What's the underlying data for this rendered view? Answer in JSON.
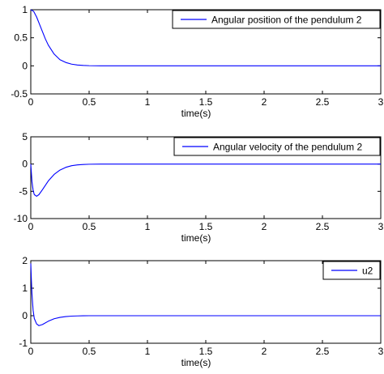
{
  "style": {
    "line_color": "#0000ff",
    "axis_color": "#000000",
    "background": "#ffffff"
  },
  "chart_data": [
    {
      "type": "line",
      "title": "",
      "xlabel": "time(s)",
      "ylabel": "",
      "xlim": [
        0,
        3
      ],
      "ylim": [
        -0.5,
        1
      ],
      "xticks": [
        0,
        0.5,
        1,
        1.5,
        2,
        2.5,
        3
      ],
      "xtick_labels": [
        "0",
        "0.5",
        "1",
        "1.5",
        "2",
        "2.5",
        "3"
      ],
      "yticks": [
        -0.5,
        0,
        0.5,
        1
      ],
      "ytick_labels": [
        "-0.5",
        "0",
        "0.5",
        "1"
      ],
      "grid": false,
      "legend_position": "top-right",
      "series": [
        {
          "name": "Angular position of the pendulum 2",
          "x": [
            0,
            0.025,
            0.05,
            0.075,
            0.1,
            0.125,
            0.15,
            0.2,
            0.25,
            0.3,
            0.35,
            0.4,
            0.45,
            0.5,
            0.6,
            1,
            1.5,
            2,
            2.5,
            3
          ],
          "y": [
            1,
            0.97,
            0.87,
            0.74,
            0.61,
            0.48,
            0.37,
            0.21,
            0.11,
            0.06,
            0.03,
            0.015,
            0.007,
            0.003,
            0,
            0,
            0,
            0,
            0,
            0
          ]
        }
      ]
    },
    {
      "type": "line",
      "title": "",
      "xlabel": "time(s)",
      "ylabel": "",
      "xlim": [
        0,
        3
      ],
      "ylim": [
        -10,
        5
      ],
      "xticks": [
        0,
        0.5,
        1,
        1.5,
        2,
        2.5,
        3
      ],
      "xtick_labels": [
        "0",
        "0.5",
        "1",
        "1.5",
        "2",
        "2.5",
        "3"
      ],
      "yticks": [
        -10,
        -5,
        0,
        5
      ],
      "ytick_labels": [
        "-10",
        "-5",
        "0",
        "5"
      ],
      "grid": false,
      "legend_position": "top-right",
      "series": [
        {
          "name": "Angular velocity of the pendulum 2",
          "x": [
            0,
            0.01,
            0.02,
            0.03,
            0.05,
            0.07,
            0.1,
            0.15,
            0.2,
            0.25,
            0.3,
            0.35,
            0.4,
            0.45,
            0.5,
            0.6,
            1,
            1.5,
            2,
            2.5,
            3
          ],
          "y": [
            0,
            -3.2,
            -4.8,
            -5.6,
            -5.9,
            -5.6,
            -4.7,
            -3.1,
            -1.9,
            -1.1,
            -0.6,
            -0.3,
            -0.15,
            -0.07,
            -0.03,
            0,
            0,
            0,
            0,
            0,
            0
          ]
        }
      ]
    },
    {
      "type": "line",
      "title": "",
      "xlabel": "time(s)",
      "ylabel": "",
      "xlim": [
        0,
        3
      ],
      "ylim": [
        -1,
        2
      ],
      "xticks": [
        0,
        0.5,
        1,
        1.5,
        2,
        2.5,
        3
      ],
      "xtick_labels": [
        "0",
        "0.5",
        "1",
        "1.5",
        "2",
        "2.5",
        "3"
      ],
      "yticks": [
        -1,
        0,
        1,
        2
      ],
      "ytick_labels": [
        "-1",
        "0",
        "1",
        "2"
      ],
      "grid": false,
      "legend_position": "top-right",
      "series": [
        {
          "name": "u2",
          "x": [
            0,
            0.005,
            0.01,
            0.02,
            0.03,
            0.05,
            0.07,
            0.1,
            0.15,
            0.2,
            0.25,
            0.3,
            0.35,
            0.4,
            0.45,
            0.5,
            1,
            1.5,
            2,
            2.5,
            3
          ],
          "y": [
            1.9,
            1.3,
            0.8,
            0.2,
            -0.1,
            -0.3,
            -0.36,
            -0.32,
            -0.2,
            -0.11,
            -0.06,
            -0.03,
            -0.015,
            -0.007,
            -0.003,
            0,
            0,
            0,
            0,
            0,
            0
          ]
        }
      ]
    }
  ]
}
